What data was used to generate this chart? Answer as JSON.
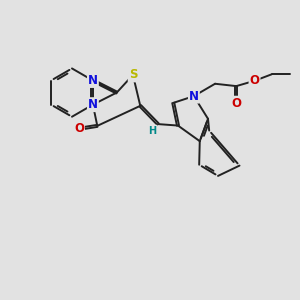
{
  "bg_color": "#e2e2e2",
  "bond_color": "#222222",
  "bond_width": 1.4,
  "atom_colors": {
    "N": "#1010dd",
    "S": "#b8b800",
    "O": "#cc0000",
    "H": "#008888"
  },
  "font_size": 8.5,
  "fig_size": [
    3.0,
    3.0
  ],
  "dpi": 100
}
